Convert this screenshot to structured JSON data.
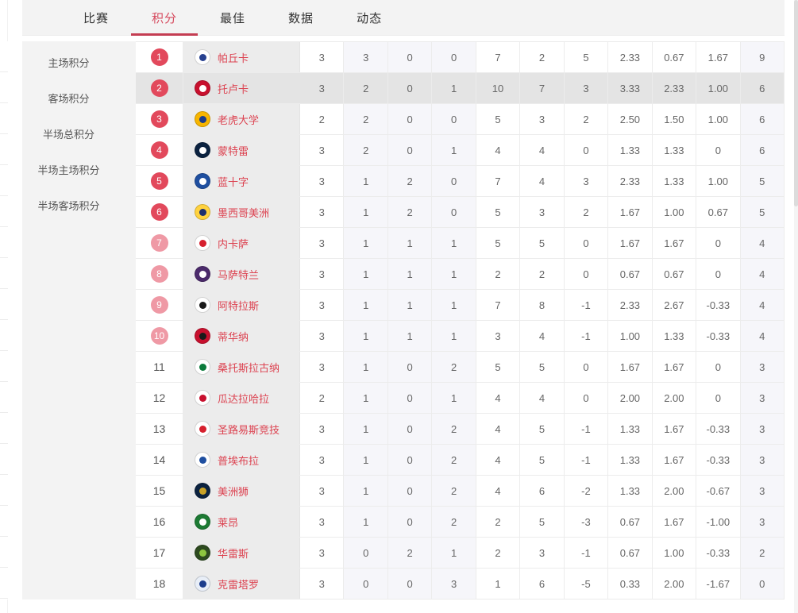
{
  "tabs": {
    "active_index": 1,
    "items": [
      {
        "label": "比赛"
      },
      {
        "label": "积分"
      },
      {
        "label": "最佳"
      },
      {
        "label": "数据"
      },
      {
        "label": "动态"
      }
    ]
  },
  "sidebar": {
    "items": [
      {
        "label": "主场积分"
      },
      {
        "label": "客场积分"
      },
      {
        "label": "半场总积分"
      },
      {
        "label": "半场主场积分"
      },
      {
        "label": "半场客场积分"
      }
    ]
  },
  "colors": {
    "accent_red": "#c43d52",
    "active_tab_text": "#d64a5e",
    "badge_strong": "#e2495c",
    "badge_soft": "#ef99a5",
    "team_name_red": "#dc4250",
    "highlight_row": "#e4e4e4",
    "tint_column": "#f6f6fa",
    "panel_gray": "#f3f3f3"
  },
  "table": {
    "tinted_value_columns": [
      1,
      2,
      3,
      10
    ],
    "rows": [
      {
        "rank": "1",
        "badge": "strong",
        "team": "帕丘卡",
        "highlighted": false,
        "logo": {
          "c1": "#ffffff",
          "c2": "#27408f"
        },
        "values": [
          "3",
          "3",
          "0",
          "0",
          "7",
          "2",
          "5",
          "2.33",
          "0.67",
          "1.67",
          "9"
        ]
      },
      {
        "rank": "2",
        "badge": "strong",
        "team": "托卢卡",
        "highlighted": true,
        "logo": {
          "c1": "#c8102e",
          "c2": "#ffffff"
        },
        "values": [
          "3",
          "2",
          "0",
          "1",
          "10",
          "7",
          "3",
          "3.33",
          "2.33",
          "1.00",
          "6"
        ]
      },
      {
        "rank": "3",
        "badge": "strong",
        "team": "老虎大学",
        "highlighted": false,
        "logo": {
          "c1": "#f7b500",
          "c2": "#1b3c8c"
        },
        "values": [
          "2",
          "2",
          "0",
          "0",
          "5",
          "3",
          "2",
          "2.50",
          "1.50",
          "1.00",
          "6"
        ]
      },
      {
        "rank": "4",
        "badge": "strong",
        "team": "蒙特雷",
        "highlighted": false,
        "logo": {
          "c1": "#0b2240",
          "c2": "#ffffff"
        },
        "values": [
          "3",
          "2",
          "0",
          "1",
          "4",
          "4",
          "0",
          "1.33",
          "1.33",
          "0",
          "6"
        ]
      },
      {
        "rank": "5",
        "badge": "strong",
        "team": "蓝十字",
        "highlighted": false,
        "logo": {
          "c1": "#1f4fa0",
          "c2": "#ffffff"
        },
        "values": [
          "3",
          "1",
          "2",
          "0",
          "7",
          "4",
          "3",
          "2.33",
          "1.33",
          "1.00",
          "5"
        ]
      },
      {
        "rank": "6",
        "badge": "strong",
        "team": "墨西哥美洲",
        "highlighted": false,
        "logo": {
          "c1": "#ffd23f",
          "c2": "#1d2f6e"
        },
        "values": [
          "3",
          "1",
          "2",
          "0",
          "5",
          "3",
          "2",
          "1.67",
          "1.00",
          "0.67",
          "5"
        ]
      },
      {
        "rank": "7",
        "badge": "soft",
        "team": "内卡萨",
        "highlighted": false,
        "logo": {
          "c1": "#ffffff",
          "c2": "#d6202e"
        },
        "values": [
          "3",
          "1",
          "1",
          "1",
          "5",
          "5",
          "0",
          "1.67",
          "1.67",
          "0",
          "4"
        ]
      },
      {
        "rank": "8",
        "badge": "soft",
        "team": "马萨特兰",
        "highlighted": false,
        "logo": {
          "c1": "#4b2a6b",
          "c2": "#ffffff"
        },
        "values": [
          "3",
          "1",
          "1",
          "1",
          "2",
          "2",
          "0",
          "0.67",
          "0.67",
          "0",
          "4"
        ]
      },
      {
        "rank": "9",
        "badge": "soft",
        "team": "阿特拉斯",
        "highlighted": false,
        "logo": {
          "c1": "#ffffff",
          "c2": "#1a1a1a"
        },
        "values": [
          "3",
          "1",
          "1",
          "1",
          "7",
          "8",
          "-1",
          "2.33",
          "2.67",
          "-0.33",
          "4"
        ]
      },
      {
        "rank": "10",
        "badge": "soft",
        "team": "蒂华纳",
        "highlighted": false,
        "logo": {
          "c1": "#c8102e",
          "c2": "#1a1a1a"
        },
        "values": [
          "3",
          "1",
          "1",
          "1",
          "3",
          "4",
          "-1",
          "1.00",
          "1.33",
          "-0.33",
          "4"
        ]
      },
      {
        "rank": "11",
        "badge": "plain",
        "team": "桑托斯拉古纳",
        "highlighted": false,
        "logo": {
          "c1": "#ffffff",
          "c2": "#0b7a3b"
        },
        "values": [
          "3",
          "1",
          "0",
          "2",
          "5",
          "5",
          "0",
          "1.67",
          "1.67",
          "0",
          "3"
        ]
      },
      {
        "rank": "12",
        "badge": "plain",
        "team": "瓜达拉哈拉",
        "highlighted": false,
        "logo": {
          "c1": "#ffffff",
          "c2": "#c8102e"
        },
        "values": [
          "2",
          "1",
          "0",
          "1",
          "4",
          "4",
          "0",
          "2.00",
          "2.00",
          "0",
          "3"
        ]
      },
      {
        "rank": "13",
        "badge": "plain",
        "team": "圣路易斯竞技",
        "highlighted": false,
        "logo": {
          "c1": "#ffffff",
          "c2": "#d6202e"
        },
        "values": [
          "3",
          "1",
          "0",
          "2",
          "4",
          "5",
          "-1",
          "1.33",
          "1.67",
          "-0.33",
          "3"
        ]
      },
      {
        "rank": "14",
        "badge": "plain",
        "team": "普埃布拉",
        "highlighted": false,
        "logo": {
          "c1": "#ffffff",
          "c2": "#1f4fa0"
        },
        "values": [
          "3",
          "1",
          "0",
          "2",
          "4",
          "5",
          "-1",
          "1.33",
          "1.67",
          "-0.33",
          "3"
        ]
      },
      {
        "rank": "15",
        "badge": "plain",
        "team": "美洲狮",
        "highlighted": false,
        "logo": {
          "c1": "#0b2240",
          "c2": "#c9a227"
        },
        "values": [
          "3",
          "1",
          "0",
          "2",
          "4",
          "6",
          "-2",
          "1.33",
          "2.00",
          "-0.67",
          "3"
        ]
      },
      {
        "rank": "16",
        "badge": "plain",
        "team": "莱昂",
        "highlighted": false,
        "logo": {
          "c1": "#1d7a34",
          "c2": "#ffffff"
        },
        "values": [
          "3",
          "1",
          "0",
          "2",
          "2",
          "5",
          "-3",
          "0.67",
          "1.67",
          "-1.00",
          "3"
        ]
      },
      {
        "rank": "17",
        "badge": "plain",
        "team": "华雷斯",
        "highlighted": false,
        "logo": {
          "c1": "#2d4a1f",
          "c2": "#8dc63f"
        },
        "values": [
          "3",
          "0",
          "2",
          "1",
          "2",
          "3",
          "-1",
          "0.67",
          "1.00",
          "-0.33",
          "2"
        ]
      },
      {
        "rank": "18",
        "badge": "plain",
        "team": "克雷塔罗",
        "highlighted": false,
        "logo": {
          "c1": "#e8eef7",
          "c2": "#1b3c8c"
        },
        "values": [
          "3",
          "0",
          "0",
          "3",
          "1",
          "6",
          "-5",
          "0.33",
          "2.00",
          "-1.67",
          "0"
        ]
      }
    ]
  }
}
